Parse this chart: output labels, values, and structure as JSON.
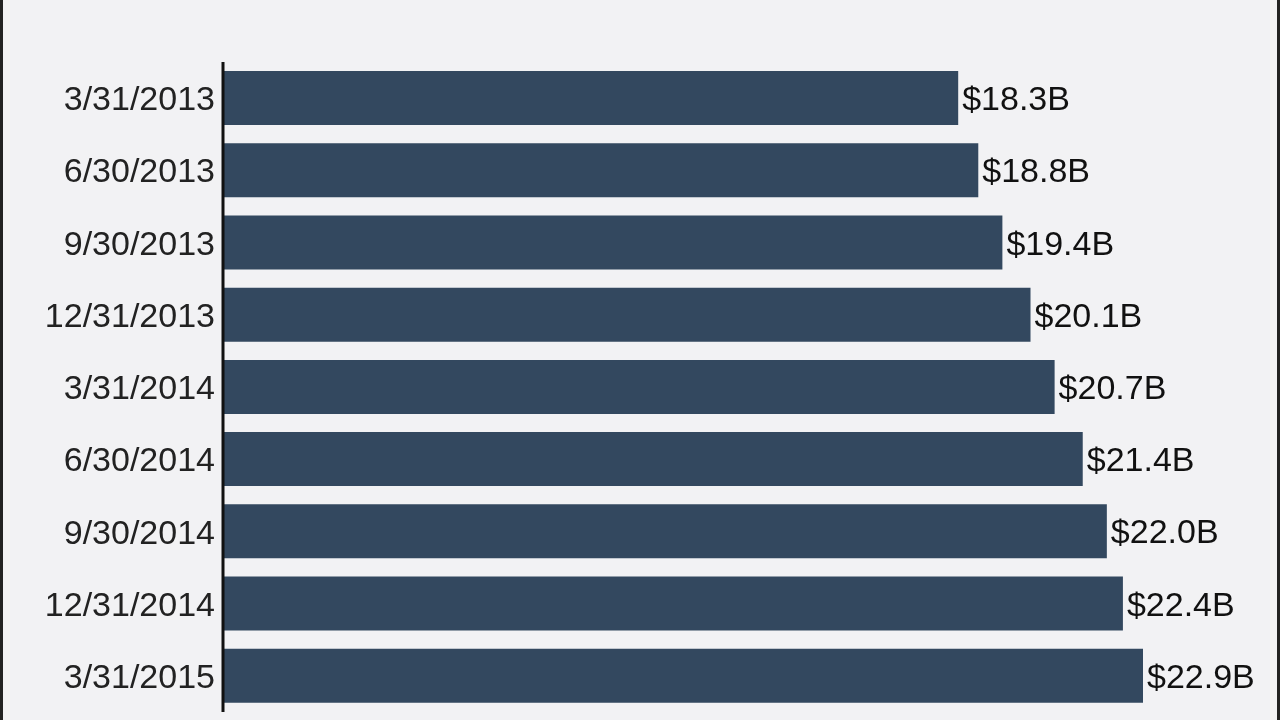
{
  "chart_data": {
    "type": "bar",
    "orientation": "horizontal",
    "categories": [
      "3/31/2013",
      "6/30/2013",
      "9/30/2013",
      "12/31/2013",
      "3/31/2014",
      "6/30/2014",
      "9/30/2014",
      "12/31/2014",
      "3/31/2015"
    ],
    "values": [
      18.3,
      18.8,
      19.4,
      20.1,
      20.7,
      21.4,
      22.0,
      22.4,
      22.9
    ],
    "value_labels": [
      "$18.3B",
      "$18.8B",
      "$19.4B",
      "$20.1B",
      "$20.7B",
      "$21.4B",
      "$22.0B",
      "$22.4B",
      "$22.9B"
    ],
    "color": "#33485f",
    "tick_labels": "y"
  }
}
